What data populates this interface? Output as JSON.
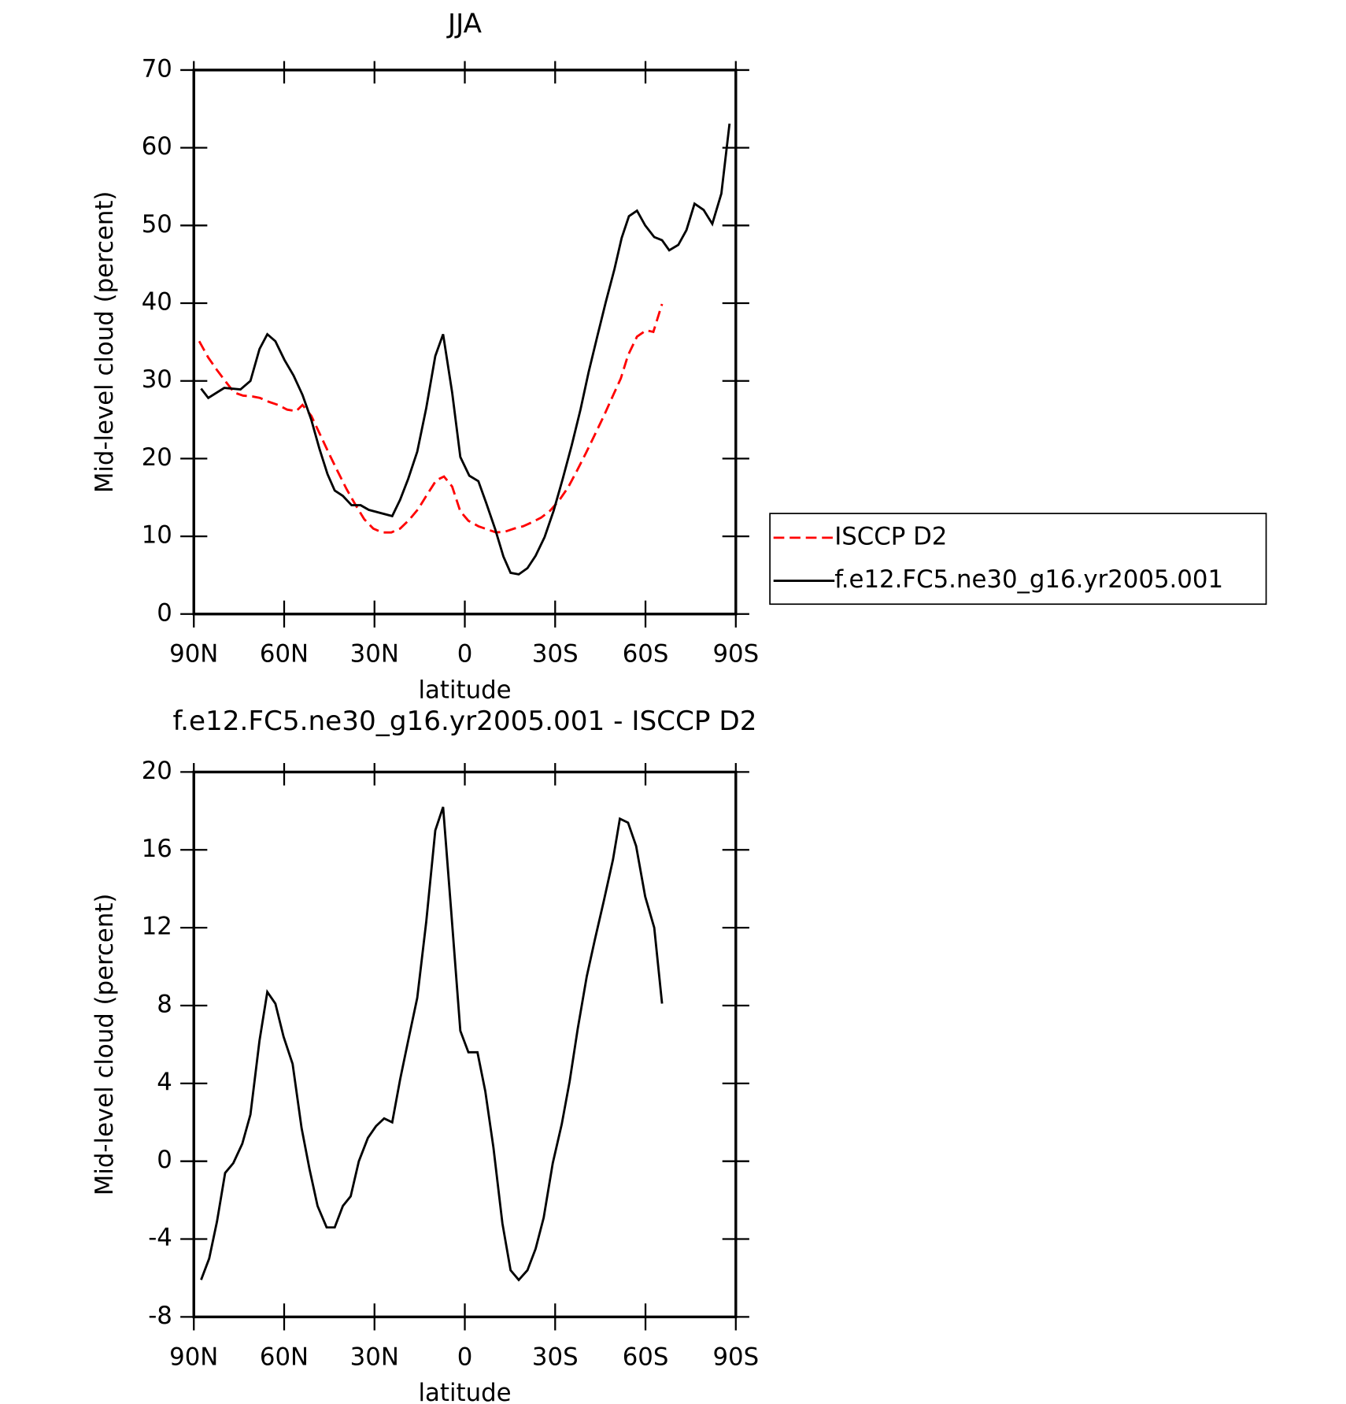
{
  "chart_data": [
    {
      "type": "line",
      "title": "JJA",
      "xlabel": "latitude",
      "ylabel": "Mid-level cloud (percent)",
      "xlim": [
        90,
        -90
      ],
      "xticks": [
        {
          "value": 90,
          "label": "90N"
        },
        {
          "value": 60,
          "label": "60N"
        },
        {
          "value": 30,
          "label": "30N"
        },
        0,
        {
          "value": -30,
          "label": "30S"
        },
        {
          "value": -60,
          "label": "60S"
        },
        {
          "value": -90,
          "label": "90S"
        }
      ],
      "ylim": [
        0,
        70
      ],
      "yticks": [
        0,
        10,
        20,
        30,
        40,
        50,
        60,
        70
      ],
      "legend": "right",
      "series": [
        {
          "name": "ISCCP D2",
          "color": "#ff0000",
          "style": "dashed",
          "x": [
            88.2,
            85.2,
            82.3,
            79.6,
            76.6,
            73.6,
            70.6,
            68.0,
            65.0,
            62.0,
            59.0,
            56.0,
            53.9,
            51.0,
            48.3,
            45.3,
            42.3,
            39.3,
            36.4,
            33.4,
            30.4,
            27.4,
            24.4,
            21.5,
            18.5,
            15.5,
            12.5,
            9.5,
            6.9,
            4.2,
            1.5,
            -1.2,
            -4.5,
            -7.4,
            -10.4,
            -13.4,
            -16.4,
            -19.4,
            -22.3,
            -25.3,
            -28.3,
            -31.3,
            -34.3,
            -37.2,
            -40.2,
            -43.2,
            -46.2,
            -49.2,
            -51.8,
            -54.2,
            -57.2,
            -60.2,
            -62.6,
            -65.5
          ],
          "values": [
            35.1,
            33.0,
            31.4,
            30.0,
            28.5,
            28.1,
            28.0,
            27.8,
            27.3,
            26.9,
            26.3,
            26.1,
            26.9,
            25.5,
            23.3,
            20.8,
            18.4,
            16.1,
            14.1,
            12.2,
            11.0,
            10.5,
            10.5,
            11.0,
            12.1,
            13.5,
            15.4,
            17.2,
            17.7,
            16.4,
            13.2,
            12.0,
            11.3,
            10.9,
            10.5,
            10.6,
            11.0,
            11.3,
            11.8,
            12.4,
            13.3,
            14.6,
            16.3,
            18.4,
            20.7,
            23.1,
            25.5,
            28.1,
            30.3,
            33.3,
            35.7,
            36.5,
            36.3,
            39.9
          ]
        },
        {
          "name": "f.e12.FC5.ne30_g16.yr2005.001",
          "color": "#000000",
          "style": "solid",
          "x": [
            87.6,
            85.2,
            79.9,
            74.5,
            71.2,
            68.2,
            65.6,
            62.9,
            59.9,
            56.9,
            53.9,
            51.0,
            48.3,
            45.6,
            43.2,
            40.5,
            37.6,
            34.6,
            31.9,
            24.1,
            21.5,
            18.8,
            15.8,
            12.8,
            9.8,
            7.2,
            4.2,
            1.5,
            -1.5,
            -4.5,
            -7.1,
            -10.1,
            -12.8,
            -15.2,
            -17.9,
            -20.8,
            -23.5,
            -26.5,
            -29.5,
            -32.5,
            -35.5,
            -38.4,
            -41.1,
            -44.1,
            -46.8,
            -49.7,
            -52.1,
            -54.5,
            -57.2,
            -59.9,
            -62.9,
            -65.5,
            -67.9,
            -70.9,
            -73.6,
            -76.3,
            -79.3,
            -82.2,
            -85.2,
            -87.9
          ],
          "values": [
            29.0,
            27.8,
            29.1,
            28.9,
            30.0,
            34.1,
            36.0,
            35.1,
            32.7,
            30.7,
            28.2,
            25.0,
            21.3,
            18.0,
            15.9,
            15.2,
            14.0,
            14.0,
            13.4,
            12.6,
            14.7,
            17.4,
            20.9,
            26.5,
            33.2,
            36.0,
            28.5,
            20.2,
            17.8,
            17.1,
            14.3,
            10.9,
            7.4,
            5.3,
            5.1,
            5.9,
            7.5,
            9.9,
            13.3,
            17.4,
            21.7,
            26.3,
            31.1,
            35.9,
            40.1,
            44.4,
            48.4,
            51.2,
            51.9,
            50.0,
            48.5,
            48.1,
            46.8,
            47.5,
            49.4,
            52.8,
            52.0,
            50.2,
            54.1,
            63.1
          ]
        }
      ]
    },
    {
      "type": "line",
      "title": "f.e12.FC5.ne30_g16.yr2005.001 - ISCCP D2",
      "xlabel": "latitude",
      "ylabel": "Mid-level cloud (percent)",
      "xlim": [
        90,
        -90
      ],
      "xticks": [
        {
          "value": 90,
          "label": "90N"
        },
        {
          "value": 60,
          "label": "60N"
        },
        {
          "value": 30,
          "label": "30N"
        },
        0,
        {
          "value": -30,
          "label": "30S"
        },
        {
          "value": -60,
          "label": "60S"
        },
        {
          "value": -90,
          "label": "90S"
        }
      ],
      "ylim": [
        -8,
        20
      ],
      "yticks": [
        -8,
        -4,
        0,
        4,
        8,
        12,
        16,
        20
      ],
      "series": [
        {
          "color": "#000000",
          "style": "solid",
          "x": [
            87.6,
            84.9,
            82.3,
            79.6,
            76.9,
            73.9,
            71.2,
            68.2,
            65.6,
            62.9,
            60.2,
            57.2,
            54.2,
            51.6,
            48.9,
            45.9,
            43.2,
            40.5,
            37.9,
            35.2,
            32.2,
            29.5,
            26.8,
            24.1,
            21.5,
            18.8,
            15.8,
            12.8,
            9.8,
            7.2,
            4.5,
            1.5,
            -1.2,
            -4.2,
            -6.8,
            -9.5,
            -12.5,
            -15.2,
            -17.9,
            -20.8,
            -23.5,
            -26.2,
            -29.2,
            -32.2,
            -34.8,
            -37.5,
            -40.5,
            -43.2,
            -46.2,
            -49.2,
            -51.5,
            -54.2,
            -56.9,
            -59.9,
            -62.9,
            -65.5
          ],
          "values": [
            -6.1,
            -5.0,
            -3.1,
            -0.6,
            -0.1,
            0.9,
            2.4,
            6.2,
            8.7,
            8.1,
            6.4,
            5.0,
            1.7,
            -0.4,
            -2.3,
            -3.4,
            -3.4,
            -2.3,
            -1.8,
            0.0,
            1.2,
            1.8,
            2.2,
            2.0,
            4.2,
            6.2,
            8.4,
            12.3,
            17.0,
            18.2,
            12.8,
            6.7,
            5.6,
            5.6,
            3.6,
            0.7,
            -3.2,
            -5.6,
            -6.1,
            -5.6,
            -4.5,
            -2.9,
            -0.1,
            1.9,
            4.1,
            6.8,
            9.5,
            11.4,
            13.4,
            15.5,
            17.6,
            17.4,
            16.2,
            13.6,
            12.0,
            8.1
          ]
        }
      ]
    }
  ]
}
